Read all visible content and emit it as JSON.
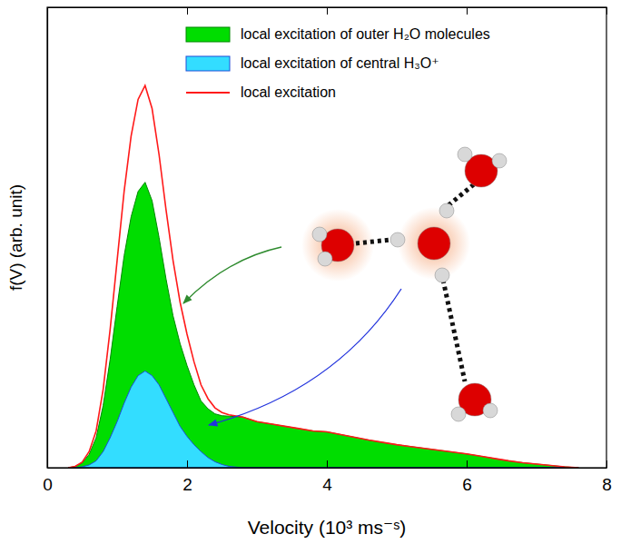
{
  "chart_data": {
    "type": "area",
    "x_label": "Velocity (10³ ms⁻ˢ)",
    "y_label": "f(V) (arb. unit)",
    "x": [
      0.3,
      0.4,
      0.5,
      0.6,
      0.7,
      0.8,
      0.9,
      1.0,
      1.1,
      1.2,
      1.3,
      1.4,
      1.5,
      1.6,
      1.7,
      1.8,
      1.9,
      2.0,
      2.1,
      2.2,
      2.3,
      2.4,
      2.5,
      2.6,
      2.8,
      3.0,
      3.2,
      3.4,
      3.6,
      3.8,
      4.0,
      4.2,
      4.4,
      4.6,
      4.8,
      5.0,
      5.2,
      5.4,
      5.6,
      5.8,
      6.0,
      6.2,
      6.4,
      6.6,
      6.8,
      7.0,
      7.2,
      7.4,
      7.6
    ],
    "series": [
      {
        "name": "local excitation of outer H₂O molecules",
        "type": "area",
        "color": "#00dd00",
        "values": [
          0,
          0.003,
          0.01,
          0.029,
          0.065,
          0.135,
          0.235,
          0.35,
          0.46,
          0.545,
          0.6,
          0.62,
          0.58,
          0.5,
          0.41,
          0.33,
          0.27,
          0.222,
          0.18,
          0.145,
          0.128,
          0.117,
          0.113,
          0.112,
          0.11,
          0.1,
          0.095,
          0.09,
          0.085,
          0.08,
          0.078,
          0.072,
          0.066,
          0.06,
          0.055,
          0.05,
          0.046,
          0.042,
          0.038,
          0.034,
          0.03,
          0.025,
          0.02,
          0.015,
          0.011,
          0.008,
          0.005,
          0.002,
          0
        ]
      },
      {
        "name": "local excitation of central H₃O⁺",
        "type": "area",
        "color": "#33ddff",
        "values": [
          0,
          0,
          0.002,
          0.006,
          0.015,
          0.035,
          0.065,
          0.1,
          0.14,
          0.175,
          0.2,
          0.21,
          0.2,
          0.18,
          0.15,
          0.12,
          0.09,
          0.068,
          0.05,
          0.035,
          0.022,
          0.013,
          0.007,
          0.003,
          0,
          0,
          0,
          0,
          0,
          0,
          0,
          0,
          0,
          0,
          0,
          0,
          0,
          0,
          0,
          0,
          0,
          0,
          0,
          0,
          0,
          0,
          0,
          0,
          0
        ]
      },
      {
        "name": "local excitation",
        "type": "line",
        "color": "#ff1a1a",
        "values": [
          0,
          0.003,
          0.012,
          0.035,
          0.08,
          0.17,
          0.3,
          0.45,
          0.6,
          0.72,
          0.8,
          0.83,
          0.78,
          0.68,
          0.56,
          0.45,
          0.36,
          0.29,
          0.23,
          0.18,
          0.15,
          0.13,
          0.12,
          0.115,
          0.11,
          0.1,
          0.095,
          0.09,
          0.085,
          0.08,
          0.078,
          0.072,
          0.066,
          0.06,
          0.055,
          0.05,
          0.046,
          0.042,
          0.038,
          0.034,
          0.03,
          0.025,
          0.02,
          0.015,
          0.011,
          0.008,
          0.005,
          0.002,
          0
        ]
      }
    ],
    "xlim": [
      0,
      8
    ],
    "xticks": [
      0,
      2,
      4,
      6,
      8
    ],
    "ylim": [
      0,
      1
    ],
    "yticks": [],
    "tick_labels": "x",
    "grid": false,
    "legend": "top-right"
  }
}
